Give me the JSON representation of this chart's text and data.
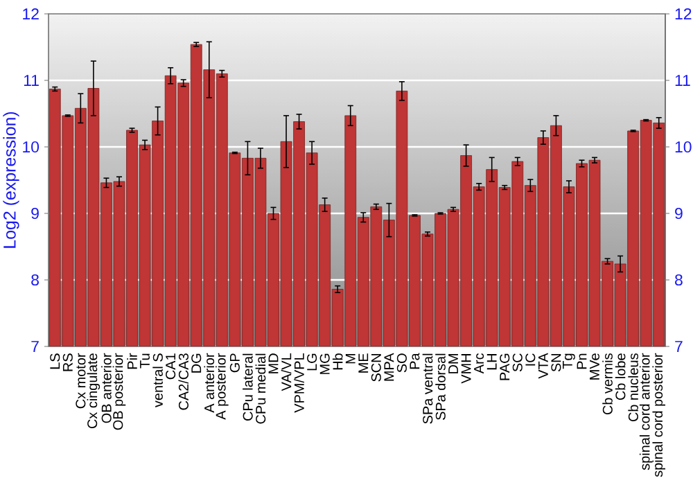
{
  "chart_data": {
    "type": "bar",
    "ylabel": "Log2 (expression)",
    "categories": [
      "LS",
      "RS",
      "Cx motor",
      "Cx cingulate",
      "OB anterior",
      "OB posterior",
      "Pir",
      "Tu",
      "ventral S",
      "CA1",
      "CA2/CA3",
      "DG",
      "A anterior",
      "A posterior",
      "GP",
      "CPu lateral",
      "CPu medial",
      "MD",
      "VA/VL",
      "VPM/VPL",
      "LG",
      "MG",
      "Hb",
      "M",
      "ME",
      "SCN",
      "MPA",
      "SO",
      "Pa",
      "SPa ventral",
      "SPa dorsal",
      "DM",
      "VMH",
      "Arc",
      "LH",
      "PAG",
      "SC",
      "IC",
      "VTA",
      "SN",
      "Tg",
      "Pn",
      "MVe",
      "Cb vermis",
      "Cb lobe",
      "Cb nucleus",
      "spinal cord anterior",
      "spinal cord posterior"
    ],
    "values": [
      10.87,
      10.47,
      10.58,
      10.88,
      9.46,
      9.48,
      10.25,
      10.03,
      10.39,
      11.07,
      10.96,
      11.54,
      11.16,
      11.1,
      9.91,
      9.83,
      9.83,
      9.0,
      10.08,
      10.38,
      9.91,
      9.13,
      7.86,
      10.47,
      8.94,
      9.1,
      8.9,
      10.84,
      8.97,
      8.69,
      9.0,
      9.06,
      9.87,
      9.4,
      9.66,
      9.39,
      9.78,
      9.42,
      10.14,
      10.32,
      9.4,
      9.75,
      9.8,
      8.28,
      8.24,
      10.24,
      10.4,
      10.36
    ],
    "errors": [
      0.03,
      0.01,
      0.22,
      0.41,
      0.07,
      0.07,
      0.03,
      0.07,
      0.21,
      0.12,
      0.05,
      0.03,
      0.42,
      0.05,
      0.01,
      0.25,
      0.15,
      0.09,
      0.39,
      0.11,
      0.17,
      0.1,
      0.05,
      0.15,
      0.07,
      0.04,
      0.25,
      0.14,
      0.01,
      0.03,
      0.01,
      0.03,
      0.16,
      0.05,
      0.18,
      0.03,
      0.06,
      0.09,
      0.1,
      0.15,
      0.09,
      0.05,
      0.04,
      0.04,
      0.12,
      0.01,
      0.01,
      0.08
    ],
    "color": "#c03535",
    "ylim": [
      7,
      12
    ],
    "yticks": [
      7,
      8,
      9,
      10,
      11,
      12
    ],
    "y2lim": [
      7,
      12
    ],
    "y2ticks": [
      7,
      8,
      9,
      10,
      11,
      12
    ],
    "grid": "y"
  }
}
